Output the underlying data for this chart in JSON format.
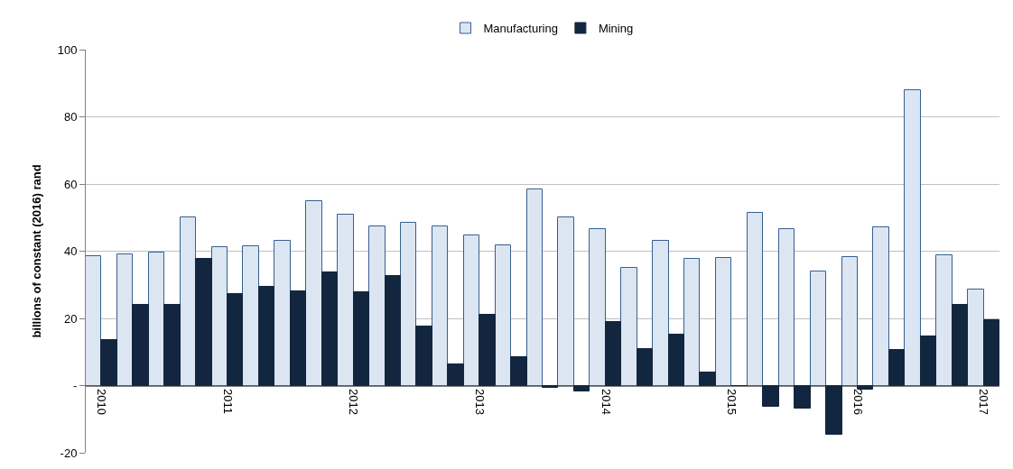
{
  "chart_data": {
    "type": "bar",
    "ylabel": "billions of constant (2016) rand",
    "categories": [
      "2010",
      null,
      null,
      null,
      "2011",
      null,
      null,
      null,
      "2012",
      null,
      null,
      null,
      "2013",
      null,
      null,
      null,
      "2014",
      null,
      null,
      null,
      "2015",
      null,
      null,
      null,
      "2016",
      null,
      null,
      null,
      "2017"
    ],
    "series": [
      {
        "name": "Manufacturing",
        "color": "#dce6f2",
        "values": [
          38.5,
          39,
          39.5,
          50.2,
          41.3,
          41.5,
          43,
          55,
          51,
          47.5,
          48.5,
          47.5,
          44.8,
          41.8,
          58.5,
          50,
          46.5,
          35,
          43,
          37.7,
          38,
          51.3,
          46.5,
          34,
          38.3,
          47,
          88,
          38.7,
          28.5
        ]
      },
      {
        "name": "Mining",
        "color": "#13263f",
        "values": [
          13.5,
          24,
          24,
          37.6,
          27.2,
          29.5,
          28,
          33.7,
          27.7,
          32.5,
          17.7,
          6.2,
          21,
          8.5,
          -0.8,
          -1.8,
          19,
          10.8,
          15.2,
          3.8,
          -0.2,
          -6.3,
          -6.8,
          -14.7,
          -1.3,
          10.5,
          14.5,
          23.9,
          19.5
        ]
      }
    ],
    "ylim": [
      -20,
      100
    ],
    "yticks": [
      {
        "value": -20,
        "label": "-20"
      },
      {
        "value": 0,
        "label": "-"
      },
      20,
      40,
      60,
      80,
      100
    ],
    "grid": "y",
    "legend": "top"
  }
}
